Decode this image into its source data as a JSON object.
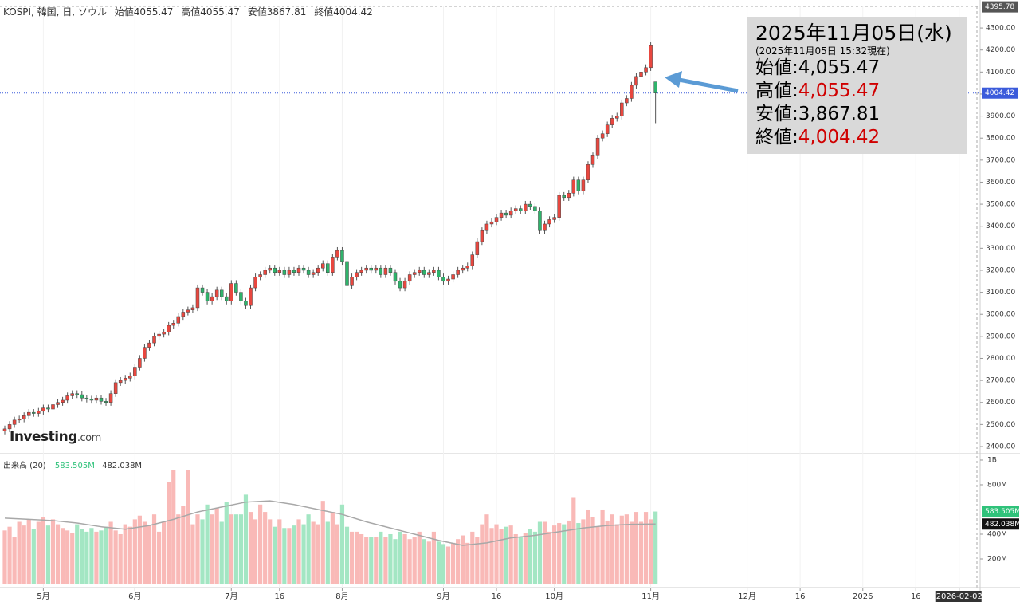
{
  "header": {
    "symbol": "KOSPI, 韓国, 日, ソウル",
    "ohlc": [
      {
        "label": "始値",
        "value": "4055.47"
      },
      {
        "label": "高値",
        "value": "4055.47"
      },
      {
        "label": "安値",
        "value": "3867.81"
      },
      {
        "label": "終値",
        "value": "4004.42"
      }
    ]
  },
  "logo": {
    "brand": "Investing",
    "suffix": ".com"
  },
  "annotation": {
    "title": "2025年11月05日(水)",
    "subtitle": "(2025年11月05日 15:32現在)",
    "rows": [
      {
        "label": "始値:",
        "value": "4,055.47",
        "color": "#000000"
      },
      {
        "label": "高値:",
        "value": "4,055.47",
        "color": "#d00000"
      },
      {
        "label": "安値:",
        "value": "3,867.81",
        "color": "#000000"
      },
      {
        "label": "終値:",
        "value": "4,004.42",
        "color": "#d00000"
      }
    ]
  },
  "chart_data": {
    "type": "candlestick",
    "up_color": "#e8473f",
    "down_color": "#2fb36b",
    "volume_up_color": "#f9b9b7",
    "volume_down_color": "#a3e6c3",
    "xlim": [
      0,
      203
    ],
    "xticks": [
      {
        "value": 8,
        "label": "5月"
      },
      {
        "value": 27,
        "label": "6月"
      },
      {
        "value": 47,
        "label": "7月"
      },
      {
        "value": 57,
        "label": "16"
      },
      {
        "value": 70,
        "label": "8月"
      },
      {
        "value": 91,
        "label": "9月"
      },
      {
        "value": 102,
        "label": "16"
      },
      {
        "value": 114,
        "label": "10月"
      },
      {
        "value": 134,
        "label": "11月"
      },
      {
        "value": 154,
        "label": "12月"
      },
      {
        "value": 165,
        "label": "16"
      },
      {
        "value": 178,
        "label": "2026"
      },
      {
        "value": 189,
        "label": "16"
      },
      {
        "value": 198,
        "label": "2026-02-02"
      }
    ],
    "ylim": [
      2371,
      4398
    ],
    "yticks": [
      {
        "value": 2400,
        "label": "2400.00"
      },
      {
        "value": 2500,
        "label": "2500.00"
      },
      {
        "value": 2600,
        "label": "2600.00"
      },
      {
        "value": 2700,
        "label": "2700.00"
      },
      {
        "value": 2800,
        "label": "2800.00"
      },
      {
        "value": 2900,
        "label": "2900.00"
      },
      {
        "value": 3000,
        "label": "3000.00"
      },
      {
        "value": 3100,
        "label": "3100.00"
      },
      {
        "value": 3200,
        "label": "3200.00"
      },
      {
        "value": 3300,
        "label": "3300.00"
      },
      {
        "value": 3400,
        "label": "3400.00"
      },
      {
        "value": 3500,
        "label": "3500.00"
      },
      {
        "value": 3600,
        "label": "3600.00"
      },
      {
        "value": 3700,
        "label": "3700.00"
      },
      {
        "value": 3800,
        "label": "3800.00"
      },
      {
        "value": 3900,
        "label": "3900.00"
      },
      {
        "value": 4000,
        "label": "4000.00"
      },
      {
        "value": 4100,
        "label": "4100.00"
      },
      {
        "value": 4200,
        "label": "4200.00"
      },
      {
        "value": 4300,
        "label": "4300.00"
      }
    ],
    "price_tags": [
      4395.78,
      4004.42
    ],
    "open": [
      2470,
      2480,
      2500,
      2520,
      2525,
      2540,
      2555,
      2550,
      2560,
      2575,
      2570,
      2590,
      2600,
      2610,
      2630,
      2640,
      2635,
      2620,
      2615,
      2610,
      2620,
      2605,
      2600,
      2640,
      2690,
      2700,
      2710,
      2720,
      2760,
      2800,
      2850,
      2870,
      2900,
      2910,
      2920,
      2950,
      2960,
      2990,
      3010,
      3020,
      3030,
      3120,
      3100,
      3060,
      3080,
      3110,
      3080,
      3060,
      3140,
      3100,
      3060,
      3040,
      3120,
      3170,
      3180,
      3200,
      3210,
      3190,
      3200,
      3180,
      3200,
      3190,
      3210,
      3200,
      3180,
      3190,
      3210,
      3230,
      3190,
      3260,
      3290,
      3240,
      3130,
      3170,
      3190,
      3200,
      3210,
      3200,
      3210,
      3180,
      3210,
      3190,
      3150,
      3120,
      3150,
      3180,
      3190,
      3200,
      3180,
      3190,
      3200,
      3170,
      3150,
      3160,
      3180,
      3200,
      3210,
      3220,
      3270,
      3330,
      3380,
      3410,
      3420,
      3440,
      3460,
      3450,
      3470,
      3480,
      3470,
      3500,
      3490,
      3470,
      3380,
      3410,
      3430,
      3440,
      3540,
      3530,
      3550,
      3610,
      3560,
      3610,
      3680,
      3720,
      3800,
      3820,
      3860,
      3890,
      3900,
      3960,
      3980,
      4040,
      4080,
      4100,
      4120,
      4055.47
    ],
    "high": [
      2495,
      2515,
      2535,
      2540,
      2555,
      2570,
      2570,
      2575,
      2590,
      2590,
      2605,
      2615,
      2625,
      2645,
      2655,
      2655,
      2650,
      2635,
      2630,
      2635,
      2635,
      2620,
      2655,
      2705,
      2715,
      2725,
      2735,
      2775,
      2815,
      2865,
      2885,
      2915,
      2925,
      2935,
      2965,
      2975,
      3005,
      3025,
      3035,
      3045,
      3135,
      3135,
      3115,
      3095,
      3125,
      3125,
      3095,
      3155,
      3155,
      3115,
      3075,
      3135,
      3185,
      3195,
      3215,
      3225,
      3225,
      3215,
      3215,
      3215,
      3215,
      3225,
      3225,
      3215,
      3205,
      3225,
      3245,
      3245,
      3275,
      3305,
      3305,
      3255,
      3185,
      3205,
      3215,
      3225,
      3225,
      3225,
      3225,
      3225,
      3225,
      3205,
      3165,
      3165,
      3195,
      3205,
      3215,
      3215,
      3205,
      3215,
      3215,
      3185,
      3175,
      3195,
      3215,
      3225,
      3235,
      3285,
      3345,
      3395,
      3425,
      3435,
      3455,
      3475,
      3475,
      3485,
      3495,
      3495,
      3515,
      3515,
      3505,
      3485,
      3425,
      3445,
      3455,
      3555,
      3555,
      3565,
      3625,
      3625,
      3625,
      3695,
      3735,
      3815,
      3835,
      3875,
      3905,
      3915,
      3975,
      3995,
      4055,
      4095,
      4115,
      4135,
      4235,
      4055.47
    ],
    "low": [
      2455,
      2465,
      2485,
      2505,
      2510,
      2525,
      2535,
      2535,
      2545,
      2555,
      2555,
      2575,
      2585,
      2595,
      2615,
      2620,
      2605,
      2600,
      2595,
      2595,
      2590,
      2585,
      2585,
      2625,
      2675,
      2685,
      2695,
      2705,
      2745,
      2785,
      2835,
      2855,
      2885,
      2895,
      2905,
      2935,
      2945,
      2975,
      2995,
      3005,
      3015,
      3085,
      3045,
      3045,
      3065,
      3065,
      3045,
      3045,
      3085,
      3045,
      3025,
      3025,
      3105,
      3155,
      3165,
      3185,
      3175,
      3175,
      3165,
      3165,
      3175,
      3175,
      3185,
      3165,
      3165,
      3175,
      3195,
      3175,
      3175,
      3245,
      3225,
      3115,
      3115,
      3155,
      3175,
      3185,
      3185,
      3185,
      3165,
      3165,
      3175,
      3135,
      3105,
      3105,
      3135,
      3165,
      3175,
      3165,
      3165,
      3175,
      3155,
      3135,
      3135,
      3145,
      3165,
      3185,
      3195,
      3205,
      3255,
      3315,
      3365,
      3395,
      3405,
      3425,
      3435,
      3435,
      3455,
      3455,
      3455,
      3475,
      3455,
      3365,
      3365,
      3395,
      3415,
      3425,
      3515,
      3515,
      3535,
      3545,
      3545,
      3595,
      3665,
      3705,
      3785,
      3805,
      3845,
      3875,
      3885,
      3945,
      3965,
      4025,
      4065,
      4085,
      4105,
      3867.81
    ],
    "close": [
      2480,
      2500,
      2520,
      2525,
      2540,
      2555,
      2550,
      2560,
      2575,
      2570,
      2590,
      2600,
      2610,
      2630,
      2640,
      2635,
      2620,
      2615,
      2610,
      2620,
      2605,
      2600,
      2640,
      2690,
      2700,
      2710,
      2720,
      2760,
      2800,
      2850,
      2870,
      2900,
      2910,
      2920,
      2950,
      2960,
      2990,
      3010,
      3020,
      3030,
      3120,
      3100,
      3060,
      3080,
      3110,
      3080,
      3060,
      3140,
      3100,
      3060,
      3040,
      3120,
      3170,
      3180,
      3200,
      3210,
      3190,
      3200,
      3180,
      3200,
      3190,
      3210,
      3200,
      3180,
      3190,
      3210,
      3230,
      3190,
      3260,
      3290,
      3240,
      3130,
      3170,
      3190,
      3200,
      3210,
      3200,
      3210,
      3180,
      3210,
      3190,
      3150,
      3120,
      3150,
      3180,
      3190,
      3200,
      3180,
      3190,
      3200,
      3170,
      3150,
      3160,
      3180,
      3200,
      3210,
      3220,
      3270,
      3330,
      3380,
      3410,
      3420,
      3440,
      3460,
      3450,
      3470,
      3480,
      3470,
      3500,
      3490,
      3470,
      3380,
      3410,
      3430,
      3440,
      3540,
      3530,
      3550,
      3610,
      3560,
      3610,
      3680,
      3720,
      3800,
      3820,
      3860,
      3890,
      3900,
      3960,
      3980,
      4040,
      4080,
      4100,
      4120,
      4220,
      4004.42
    ],
    "volume_label": "出来高 (20)",
    "vlim": [
      0,
      1045
    ],
    "vticks": [
      {
        "value": 200,
        "label": "200M"
      },
      {
        "value": 400,
        "label": "400M"
      },
      {
        "value": 800,
        "label": "800M"
      },
      {
        "value": 1000,
        "label": "1B"
      }
    ],
    "volume_tags": [
      {
        "value": 583.505,
        "label": "583.505M",
        "color": "#2fc27a"
      },
      {
        "value": 482.038,
        "label": "482.038M",
        "color": "#111111"
      }
    ],
    "volume": [
      430,
      460,
      380,
      500,
      470,
      520,
      440,
      500,
      540,
      470,
      520,
      480,
      450,
      430,
      410,
      480,
      440,
      420,
      450,
      420,
      430,
      460,
      500,
      430,
      400,
      480,
      460,
      520,
      550,
      500,
      470,
      560,
      420,
      500,
      820,
      920,
      560,
      630,
      920,
      480,
      560,
      520,
      640,
      560,
      610,
      500,
      660,
      560,
      560,
      560,
      720,
      580,
      520,
      640,
      580,
      520,
      460,
      520,
      450,
      450,
      470,
      520,
      480,
      560,
      500,
      480,
      670,
      500,
      580,
      480,
      640,
      460,
      420,
      420,
      400,
      380,
      380,
      380,
      420,
      380,
      400,
      360,
      420,
      400,
      360,
      380,
      420,
      360,
      340,
      420,
      340,
      320,
      300,
      330,
      360,
      390,
      330,
      420,
      380,
      480,
      560,
      450,
      480,
      440,
      460,
      470,
      400,
      380,
      410,
      440,
      420,
      500,
      500,
      420,
      470,
      490,
      480,
      510,
      700,
      490,
      520,
      600,
      540,
      460,
      600,
      510,
      560,
      480,
      550,
      560,
      500,
      580,
      500,
      580,
      520,
      583.505
    ],
    "ma": {
      "color": "#a8a8a8",
      "x": [
        0,
        5,
        10,
        15,
        20,
        25,
        30,
        35,
        40,
        45,
        50,
        55,
        60,
        65,
        70,
        75,
        80,
        85,
        90,
        95,
        100,
        105,
        110,
        115,
        120,
        125,
        130,
        135
      ],
      "values": [
        530,
        520,
        510,
        490,
        460,
        440,
        470,
        520,
        580,
        620,
        660,
        670,
        640,
        600,
        560,
        500,
        450,
        400,
        350,
        310,
        330,
        370,
        390,
        420,
        450,
        470,
        480,
        482.038
      ]
    }
  }
}
